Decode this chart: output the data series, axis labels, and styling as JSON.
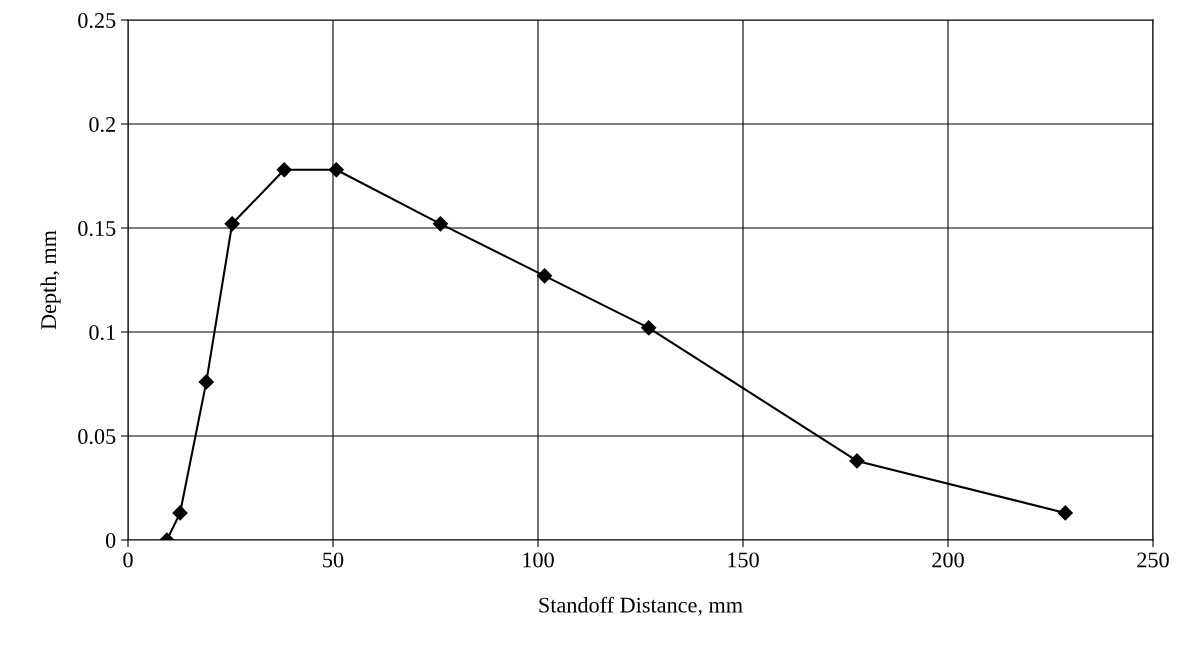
{
  "chart_data": {
    "type": "line",
    "xlabel": "Standoff Distance, mm",
    "ylabel": "Depth, mm",
    "x": [
      9.5,
      12.7,
      19.1,
      25.4,
      38.1,
      50.8,
      76.2,
      101.6,
      127,
      177.8,
      228.6
    ],
    "series": [
      {
        "color": "#000000",
        "values": [
          0,
          0.013,
          0.076,
          0.152,
          0.178,
          0.178,
          0.152,
          0.127,
          0.102,
          0.038,
          0.013
        ]
      }
    ],
    "xlim": [
      0,
      250
    ],
    "xticks": [
      0,
      50,
      100,
      150,
      200,
      250
    ],
    "ylim": [
      0,
      0.25
    ],
    "yticks": [
      0,
      0.05,
      0.1,
      0.15,
      0.2,
      0.25
    ],
    "grid": true,
    "marker": "diamond",
    "line_style": "solid"
  }
}
